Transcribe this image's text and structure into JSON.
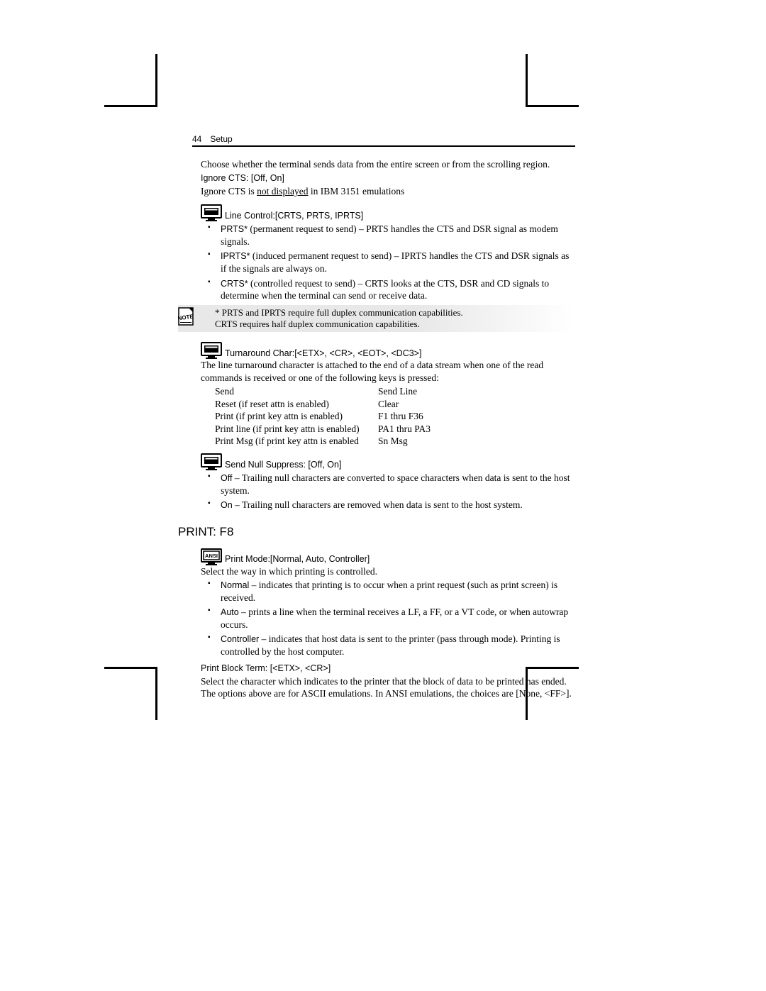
{
  "header": {
    "page_num": "44",
    "section": "Setup"
  },
  "colors": {
    "bg": "#ffffff",
    "text": "#000000",
    "note_bg": "#e8e8e8"
  },
  "fonts": {
    "body": "Times New Roman",
    "headings": "Arial"
  },
  "intro": "Choose whether the terminal sends data from the entire screen or from the scrolling region.",
  "ignore_cts": {
    "label": "Ignore CTS: [Off, On]",
    "text_pre": "Ignore CTS is ",
    "underlined": "not displayed",
    "text_post": " in IBM 3151 emulations"
  },
  "line_control": {
    "label_pre": "Line Control:",
    "label_opts": " [CRTS, PRTS, IPRTS]",
    "items": [
      {
        "bold": "PRTS*",
        "rest": " (permanent request to send) – PRTS handles the CTS and DSR signal as modem signals."
      },
      {
        "bold": "IPRTS*",
        "rest": " (induced permanent request to send) – IPRTS handles the CTS and DSR signals as if the signals are always on."
      },
      {
        "bold": "CRTS*",
        "rest": " (controlled request to send) – CRTS looks at the CTS, DSR and CD signals to determine when the terminal can send or receive data."
      }
    ]
  },
  "note": {
    "line1": "* PRTS and IPRTS require full duplex communication capabilities.",
    "line2": "CRTS requires half duplex communication capabilities."
  },
  "turnaround": {
    "label_pre": "Turnaround Char:",
    "label_opts": " [<ETX>, <CR>, <EOT>, <DC3>]",
    "desc": "The line turnaround character is attached to the end of a data stream when one of the read commands is received or one of the following keys is pressed:",
    "left": [
      "Send",
      "Reset (if reset attn is enabled)",
      "Print (if print key attn is enabled)",
      "Print line (if print key attn is enabled)",
      "Print Msg (if print key attn is enabled"
    ],
    "right": [
      "Send Line",
      "Clear",
      "F1 thru F36",
      "PA1 thru PA3",
      "Sn Msg"
    ]
  },
  "send_null": {
    "label": "Send Null Suppress: [Off, On]",
    "items": [
      {
        "bold": "Off",
        "rest": " – Trailing null characters are converted to space characters when data is sent to the host system."
      },
      {
        "bold": "On",
        "rest": " – Trailing null characters are removed when data is sent to the host system."
      }
    ]
  },
  "print_section": {
    "heading": "PRINT: F8",
    "mode": {
      "label_pre": "Print Mode:",
      "label_opts": " [Normal, Auto, Controller]",
      "desc": "Select the way in which printing is controlled.",
      "items": [
        {
          "bold": "Normal",
          "rest": " – indicates that printing is to occur when a print request (such as print screen) is received."
        },
        {
          "bold": "Auto",
          "rest": " – prints a line when the terminal receives a LF, a FF, or a VT code, or when autowrap occurs."
        },
        {
          "bold": "Controller",
          "rest": " – indicates that host data is sent to the printer (pass through mode). Printing is controlled by the host computer."
        }
      ]
    },
    "block_term": {
      "label": "Print Block Term: [<ETX>, <CR>]",
      "desc": "Select the character which indicates to the printer that the block of data to be printed has ended. The options above are for ASCII emulations. In ANSI emulations, the choices are [None, <FF>]."
    }
  }
}
